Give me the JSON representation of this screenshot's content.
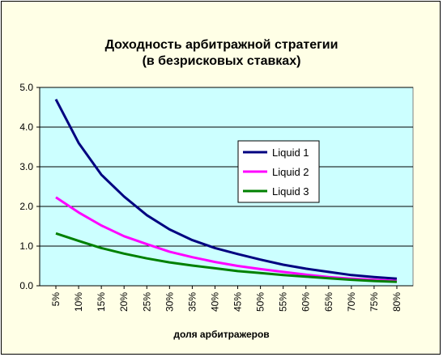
{
  "chart_data": {
    "type": "line",
    "title": "Доходность арбитражной стратегии",
    "subtitle": "(в безрисковых ставках)",
    "xlabel": "доля арбитражеров",
    "ylabel": "",
    "ylim": [
      0,
      5
    ],
    "yticks": [
      "0.0",
      "1.0",
      "2.0",
      "3.0",
      "4.0",
      "5.0"
    ],
    "grid": true,
    "legend_position": "right",
    "categories": [
      "5%",
      "10%",
      "15%",
      "20%",
      "25%",
      "30%",
      "35%",
      "40%",
      "45%",
      "50%",
      "55%",
      "60%",
      "65%",
      "70%",
      "75%",
      "80%"
    ],
    "series": [
      {
        "name": "Liquid 1",
        "color": "#000080",
        "values": [
          4.7,
          3.6,
          2.8,
          2.25,
          1.78,
          1.42,
          1.15,
          0.95,
          0.8,
          0.66,
          0.53,
          0.43,
          0.35,
          0.27,
          0.22,
          0.18
        ]
      },
      {
        "name": "Liquid 2",
        "color": "#ff00ff",
        "values": [
          2.23,
          1.85,
          1.52,
          1.25,
          1.05,
          0.86,
          0.72,
          0.6,
          0.5,
          0.42,
          0.35,
          0.28,
          0.22,
          0.18,
          0.15,
          0.12
        ]
      },
      {
        "name": "Liquid 3",
        "color": "#008000",
        "values": [
          1.32,
          1.13,
          0.95,
          0.81,
          0.69,
          0.59,
          0.51,
          0.44,
          0.37,
          0.32,
          0.27,
          0.23,
          0.19,
          0.15,
          0.12,
          0.1
        ]
      }
    ],
    "plot_background": "#ccffff",
    "chart_background": "#ffffe6"
  }
}
